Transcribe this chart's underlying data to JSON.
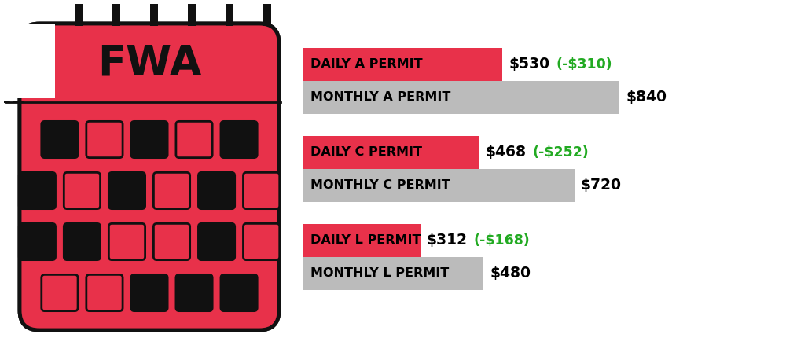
{
  "permits": [
    {
      "daily_label": "DAILY A PERMIT",
      "monthly_label": "MONTHLY A PERMIT",
      "daily_value": 530,
      "monthly_value": 840,
      "daily_display": "$530",
      "monthly_display": "$840",
      "savings_display": "(-$310)"
    },
    {
      "daily_label": "DAILY C PERMIT",
      "monthly_label": "MONTHLY C PERMIT",
      "daily_value": 468,
      "monthly_value": 720,
      "daily_display": "$468",
      "monthly_display": "$720",
      "savings_display": "(-$252)"
    },
    {
      "daily_label": "DAILY L PERMIT",
      "monthly_label": "MONTHLY L PERMIT",
      "daily_value": 312,
      "monthly_value": 480,
      "daily_display": "$312",
      "monthly_display": "$480",
      "savings_display": "(-$168)"
    }
  ],
  "max_value": 840,
  "scale_max": 1000,
  "daily_color": "#E8314A",
  "monthly_color": "#BBBBBB",
  "savings_color": "#22AA22",
  "background_color": "#FFFFFF",
  "calendar_bg": "#E8314A",
  "calendar_outline": "#111111",
  "fwa_text": "FWA",
  "row_fills": [
    [
      true,
      false,
      true,
      false,
      true
    ],
    [
      true,
      false,
      true,
      false,
      true,
      false
    ],
    [
      true,
      true,
      false,
      false,
      true,
      false
    ],
    [
      false,
      false,
      true,
      true,
      true
    ]
  ]
}
